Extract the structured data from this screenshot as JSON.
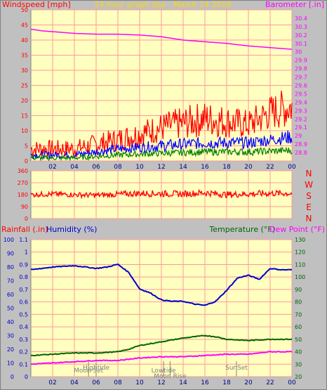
{
  "colors": {
    "frame": "#c0c0c0",
    "plot_bg": "#ffffc0",
    "grid": "#ff9999",
    "title": "#ffd700",
    "wind_speed": "#ff0000",
    "wind_avg": "#0000ff",
    "wind_low": "#008000",
    "baro": "#ff00ff",
    "humidity": "#0000cc",
    "temperature": "#006400",
    "dew_point": "#ff00ff",
    "rain": "#ff0000",
    "annot": "#808080"
  },
  "time_axis": {
    "range": [
      0,
      24
    ],
    "tick_labels": [
      "02",
      "04",
      "06",
      "08",
      "10",
      "12",
      "14",
      "16",
      "18",
      "20",
      "22",
      "00"
    ]
  },
  "chart_data": [
    {
      "type": "line",
      "title": "24 hour graph day : March 14 2019",
      "ylabel_left": "Windspeed [mph]",
      "ylabel_right": "Barometer [.in]",
      "ylim_left": [
        0,
        50
      ],
      "ylim_right": [
        28.7,
        30.5
      ],
      "yticks_left": [
        "0",
        "5",
        "10",
        "15",
        "20",
        "25",
        "30",
        "35",
        "40",
        "45",
        "50"
      ],
      "yticks_right": [
        "28.8",
        "28.9",
        "29",
        "29.1",
        "29.2",
        "29.3",
        "29.4",
        "29.5",
        "29.6",
        "29.7",
        "29.8",
        "29.9",
        "30",
        "30.1",
        "30.2",
        "30.3",
        "30.4"
      ],
      "grid": true,
      "series": [
        {
          "axis": "right",
          "x": [
            0,
            1,
            2,
            4,
            6,
            8,
            10,
            12,
            14,
            16,
            18,
            20,
            22,
            23,
            24
          ],
          "values": [
            30.27,
            30.25,
            30.24,
            30.22,
            30.21,
            30.21,
            30.2,
            30.18,
            30.14,
            30.12,
            30.1,
            30.07,
            30.05,
            30.04,
            30.03
          ]
        },
        {
          "axis": "left",
          "x": [
            0,
            4,
            8,
            12,
            16,
            20,
            22,
            24
          ],
          "values": [
            4,
            4,
            7,
            11,
            14,
            12,
            16,
            18
          ],
          "amp": [
            3,
            3,
            4,
            5,
            6,
            5,
            6,
            7
          ]
        },
        {
          "axis": "left",
          "x": [
            0,
            4,
            8,
            12,
            16,
            20,
            22,
            24
          ],
          "values": [
            2,
            2,
            4,
            5,
            6,
            6,
            7,
            8
          ],
          "amp": [
            1.2,
            1.2,
            1.5,
            2,
            2,
            2,
            2,
            2.5
          ]
        },
        {
          "axis": "left",
          "x": [
            0,
            4,
            8,
            12,
            16,
            20,
            24
          ],
          "values": [
            1,
            1,
            2,
            2.5,
            3,
            3,
            3.5
          ],
          "amp": [
            0.8,
            0.8,
            1,
            1,
            1.2,
            1.2,
            1.2
          ]
        }
      ]
    },
    {
      "type": "line",
      "ylim": [
        0,
        360
      ],
      "yticks": [
        "0",
        "90",
        "180",
        "270",
        "360"
      ],
      "ylabel_right_letters": [
        "N",
        "W",
        "S",
        "E",
        "N"
      ],
      "grid": true,
      "series": [
        {
          "x": [
            0,
            2,
            6,
            10,
            14,
            16,
            18,
            22,
            24
          ],
          "values": [
            180,
            185,
            175,
            190,
            185,
            195,
            180,
            190,
            190
          ],
          "amp": [
            20,
            20,
            20,
            25,
            25,
            25,
            25,
            25,
            25
          ]
        }
      ]
    },
    {
      "type": "line",
      "ylabel_left_1": "Rainfall (.in)",
      "ylabel_left_2": "Humidity (%)",
      "ylabel_right_1": "Temperature (°F)",
      "ylabel_right_2": "Dew Point (°F)",
      "ylim_humidity": [
        0,
        100
      ],
      "ylim_rain": [
        0,
        1.1
      ],
      "ylim_temp": [
        20,
        130
      ],
      "yticks_humidity": [
        "0",
        "10",
        "20",
        "30",
        "40",
        "50",
        "60",
        "70",
        "80",
        "90",
        "100"
      ],
      "yticks_rain": [
        "0",
        "0.1",
        "0.2",
        "0.3",
        "0.4",
        "0.5",
        "0.6",
        "0.7",
        "0.8",
        "0.9",
        "1",
        "1.1"
      ],
      "yticks_temp": [
        "20",
        "30",
        "40",
        "50",
        "60",
        "70",
        "80",
        "90",
        "100",
        "110",
        "120",
        "130"
      ],
      "grid": true,
      "series": [
        {
          "x": [
            0,
            1,
            2,
            4,
            6,
            7,
            8,
            9,
            10,
            11,
            12,
            13,
            14,
            15,
            16,
            17,
            18,
            19,
            20,
            21,
            22,
            23,
            24
          ],
          "values": [
            78,
            79,
            80,
            81,
            79,
            80,
            82,
            76,
            64,
            61,
            56,
            55,
            55,
            53,
            52,
            55,
            63,
            72,
            74,
            71,
            79,
            78,
            78
          ]
        },
        {
          "x": [
            0,
            2,
            4,
            6,
            8,
            9,
            10,
            12,
            14,
            16,
            17,
            18,
            20,
            22,
            24
          ],
          "values": [
            37,
            38,
            39,
            39,
            40,
            42,
            45,
            48,
            51,
            53,
            52,
            50,
            49,
            50,
            50
          ]
        },
        {
          "x": [
            0,
            2,
            4,
            6,
            8,
            9,
            10,
            12,
            14,
            16,
            18,
            20,
            22,
            24
          ],
          "values": [
            30,
            31,
            32,
            33,
            33,
            34,
            35,
            36,
            36,
            37,
            38,
            38,
            40,
            40
          ]
        }
      ],
      "annotations": [
        {
          "text": "Moon Set",
          "x": 5.3
        },
        {
          "text": "Hightide",
          "x": 6.0
        },
        {
          "text": "Lowtide",
          "x": 12.2
        },
        {
          "text": "Moon Rise",
          "x": 12.8
        },
        {
          "text": "SunSet",
          "x": 18.9
        }
      ]
    }
  ]
}
